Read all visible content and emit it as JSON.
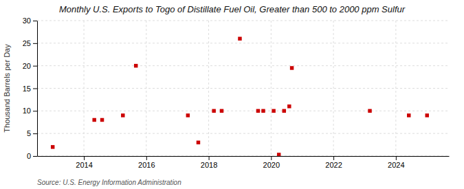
{
  "chart_data": {
    "type": "scatter",
    "title": "Monthly U.S. Exports to Togo of Distillate Fuel Oil, Greater than 500 to 2000 ppm Sulfur",
    "ylabel": "Thousand Barrels per Day",
    "source": "Source: U.S. Energy Information Administration",
    "x": [
      2013,
      2014.3333333333333,
      2014.5833333333333,
      2015.25,
      2015.6666666666667,
      2017.3333333333333,
      2017.6666666666667,
      2018.1666666666667,
      2018.4166666666667,
      2019,
      2019.5833333333333,
      2019.75,
      2020.0833333333333,
      2020.25,
      2020.4166666666667,
      2020.5833333333333,
      2020.6666666666667,
      2023.1666666666667,
      2024.4166666666667,
      2025
    ],
    "values": [
      2,
      8,
      8,
      9,
      20,
      9,
      3,
      10,
      10,
      26,
      10,
      10,
      10,
      0.3,
      10,
      11,
      19.5,
      10,
      9,
      9
    ],
    "color": "#cc0000",
    "marker": "square",
    "xlim": [
      2012.5,
      2025.7
    ],
    "xticks": [
      2014,
      2016,
      2018,
      2020,
      2022,
      2024
    ],
    "ylim": [
      0,
      30
    ],
    "yticks": [
      0,
      5,
      10,
      15,
      20,
      25,
      30
    ],
    "grid": true
  }
}
